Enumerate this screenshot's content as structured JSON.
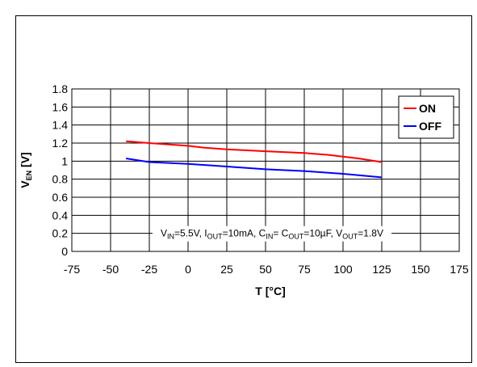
{
  "chart_data": {
    "type": "line",
    "title": "",
    "xlabel": "T [°C]",
    "ylabel": {
      "main": "V",
      "sub": "EN",
      "suffix": " [V]"
    },
    "xlim": [
      -75,
      175
    ],
    "ylim": [
      0,
      1.8
    ],
    "xticks": [
      -75,
      -50,
      -25,
      0,
      25,
      50,
      75,
      100,
      125,
      150,
      175
    ],
    "yticks": [
      0,
      0.2,
      0.4,
      0.6,
      0.8,
      1,
      1.2,
      1.4,
      1.6,
      1.8
    ],
    "grid": true,
    "legend_position": "top-right",
    "series": [
      {
        "name": "ON",
        "color": "#ff0000",
        "x": [
          -40,
          -25,
          0,
          10,
          25,
          50,
          75,
          90,
          100,
          110,
          125
        ],
        "y": [
          1.22,
          1.2,
          1.17,
          1.15,
          1.13,
          1.11,
          1.09,
          1.07,
          1.05,
          1.03,
          0.99
        ]
      },
      {
        "name": "OFF",
        "color": "#0000ff",
        "x": [
          -40,
          -25,
          0,
          25,
          50,
          75,
          100,
          125
        ],
        "y": [
          1.03,
          0.99,
          0.97,
          0.94,
          0.91,
          0.89,
          0.86,
          0.82
        ]
      }
    ],
    "annotation": [
      {
        "text": "V"
      },
      {
        "text": "IN",
        "sub": true
      },
      {
        "text": "=5.5V, I"
      },
      {
        "text": "OUT",
        "sub": true
      },
      {
        "text": "=10mA, C"
      },
      {
        "text": "IN",
        "sub": true
      },
      {
        "text": "= C"
      },
      {
        "text": "OUT",
        "sub": true
      },
      {
        "text": "=10µF, V"
      },
      {
        "text": "OUT",
        "sub": true
      },
      {
        "text": "=1.8V"
      }
    ]
  }
}
